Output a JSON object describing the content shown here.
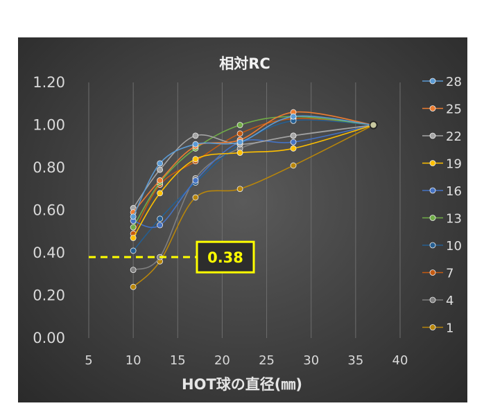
{
  "chart_data": {
    "type": "line",
    "title": "相対RC",
    "xlabel": "HOT球の直径(㎜)",
    "ylabel": "",
    "xlim": [
      5,
      40
    ],
    "ylim": [
      0,
      1.2
    ],
    "x_ticks": [
      "5",
      "10",
      "15",
      "20",
      "25",
      "30",
      "35",
      "40"
    ],
    "y_ticks": [
      "0.00",
      "0.20",
      "0.40",
      "0.60",
      "0.80",
      "1.00",
      "1.20"
    ],
    "grid": "vertical",
    "legend_position": "right",
    "x": [
      10,
      13,
      17,
      22,
      28,
      37
    ],
    "series": [
      {
        "name": "28",
        "color": "#5b9bd5",
        "values": [
          0.57,
          0.82,
          0.91,
          0.92,
          1.04,
          1.0
        ]
      },
      {
        "name": "25",
        "color": "#ed7d31",
        "values": [
          0.59,
          0.74,
          0.9,
          0.93,
          1.06,
          1.0
        ]
      },
      {
        "name": "22",
        "color": "#a5a5a5",
        "values": [
          0.61,
          0.79,
          0.95,
          0.91,
          0.95,
          1.0
        ]
      },
      {
        "name": "19",
        "color": "#ffc000",
        "values": [
          0.47,
          0.68,
          0.84,
          0.87,
          0.89,
          1.0
        ]
      },
      {
        "name": "16",
        "color": "#4472c4",
        "values": [
          0.55,
          0.53,
          0.74,
          0.92,
          0.92,
          1.0
        ]
      },
      {
        "name": "13",
        "color": "#70ad47",
        "values": [
          0.52,
          0.73,
          0.89,
          1.0,
          1.04,
          1.0
        ]
      },
      {
        "name": "10",
        "color": "#255e91",
        "values": [
          0.41,
          0.56,
          0.73,
          0.91,
          1.02,
          1.0
        ]
      },
      {
        "name": "7",
        "color": "#c55a11",
        "values": [
          0.49,
          0.72,
          0.83,
          0.96,
          1.03,
          1.0
        ]
      },
      {
        "name": "4",
        "color": "#7f7f7f",
        "values": [
          0.32,
          0.38,
          0.75,
          0.89,
          0.95,
          1.0
        ]
      },
      {
        "name": "1",
        "color": "#b8860b",
        "values": [
          0.24,
          0.36,
          0.66,
          0.7,
          0.81,
          1.0
        ]
      }
    ],
    "annotation": {
      "label": "0.38",
      "value": 0.38,
      "from_x": 5,
      "to_x": 17,
      "color": "#ffff00"
    }
  }
}
